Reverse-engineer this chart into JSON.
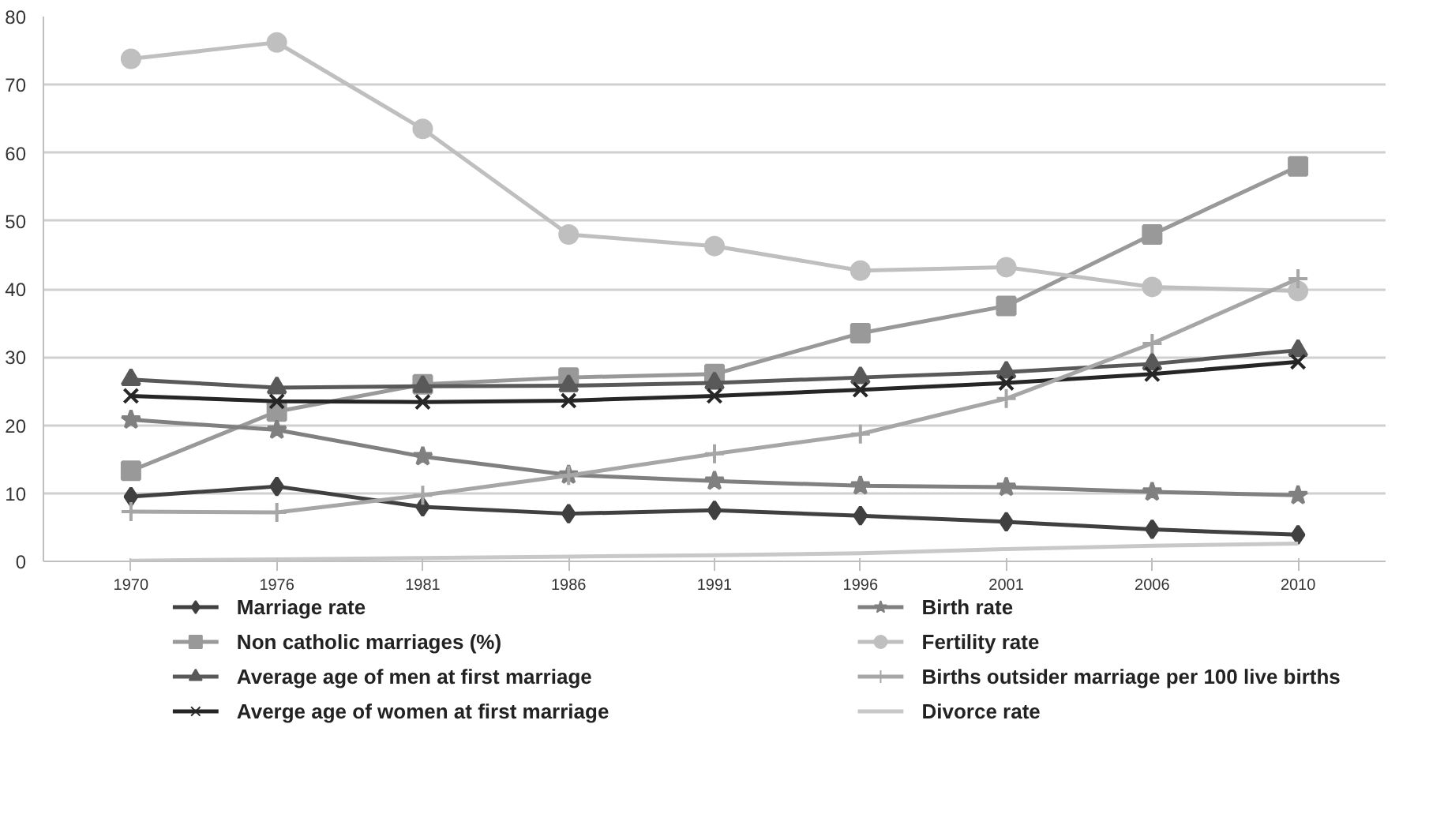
{
  "chart_data": {
    "type": "line",
    "categories": [
      "1970",
      "1976",
      "1981",
      "1986",
      "1991",
      "1996",
      "2001",
      "2006",
      "2010"
    ],
    "ylim": [
      0,
      80
    ],
    "yticks": [
      0,
      10,
      20,
      30,
      40,
      50,
      60,
      70,
      80
    ],
    "grid": "y",
    "legend": "bottom",
    "line_style": "solid",
    "series": [
      {
        "name": "Marriage rate",
        "color": "#404040",
        "marker": "diamond",
        "values": [
          9.5,
          11,
          8,
          7,
          7.5,
          6.7,
          5.8,
          4.7,
          3.9
        ]
      },
      {
        "name": "Non catholic marriages (%)",
        "color": "#999999",
        "marker": "square",
        "values": [
          13.3,
          22,
          26,
          27,
          27.5,
          33.5,
          37.5,
          48,
          58
        ]
      },
      {
        "name": "Average age of men at first marriage",
        "color": "#595959",
        "marker": "triangle",
        "values": [
          26.7,
          25.5,
          25.7,
          25.8,
          26.2,
          27,
          27.8,
          29,
          31
        ]
      },
      {
        "name": "Averge age of women at first marriage",
        "color": "#262626",
        "marker": "x",
        "values": [
          24.3,
          23.5,
          23.4,
          23.6,
          24.3,
          25.2,
          26.2,
          27.5,
          29.3
        ]
      },
      {
        "name": "Birth rate",
        "color": "#808080",
        "marker": "star",
        "values": [
          20.8,
          19.3,
          15.4,
          12.7,
          11.8,
          11.1,
          10.9,
          10.2,
          9.7
        ]
      },
      {
        "name": "Fertility rate",
        "color": "#bfbfbf",
        "marker": "circle",
        "values": [
          73.8,
          76.2,
          63.5,
          48,
          46.3,
          42.7,
          43.2,
          40.3,
          39.7
        ]
      },
      {
        "name": "Births outsider  marriage per 100 live births",
        "color": "#a6a6a6",
        "marker": "cross",
        "values": [
          7.3,
          7.2,
          9.7,
          12.6,
          15.8,
          18.7,
          23.9,
          32,
          41.5
        ]
      },
      {
        "name": "Divorce rate",
        "color": "#c8c8c8",
        "marker": "none",
        "values": [
          0.1,
          0.3,
          0.5,
          0.7,
          0.9,
          1.2,
          1.8,
          2.3,
          2.6
        ]
      }
    ]
  }
}
